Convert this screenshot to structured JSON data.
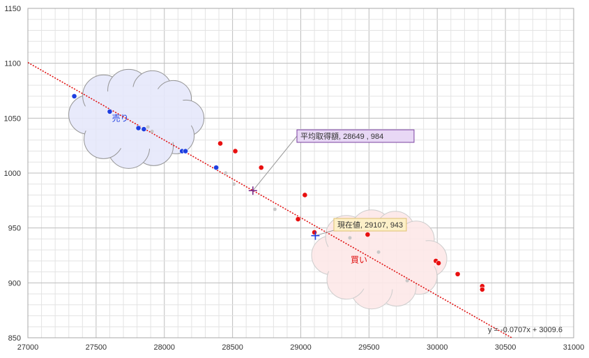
{
  "chart_data": {
    "type": "scatter",
    "xlim": [
      27000,
      31000
    ],
    "ylim": [
      850,
      1150
    ],
    "x_major_step": 500,
    "x_minor_step": 100,
    "y_major_step": 50,
    "y_minor_step": 10,
    "grid": true,
    "x_tick_labels": [
      "27000",
      "27500",
      "28000",
      "28500",
      "29000",
      "29500",
      "30000",
      "30500",
      "31000"
    ],
    "y_tick_labels": [
      "850",
      "900",
      "950",
      "1000",
      "1050",
      "1100",
      "1150"
    ],
    "series": [
      {
        "color": "#1f3fe0",
        "points": [
          {
            "x": 27340,
            "y": 1070
          },
          {
            "x": 27600,
            "y": 1056
          },
          {
            "x": 27810,
            "y": 1041
          },
          {
            "x": 27850,
            "y": 1040
          },
          {
            "x": 28130,
            "y": 1020
          },
          {
            "x": 28155,
            "y": 1020
          },
          {
            "x": 28380,
            "y": 1005
          }
        ]
      },
      {
        "color": "#e81010",
        "points": [
          {
            "x": 28410,
            "y": 1027
          },
          {
            "x": 28520,
            "y": 1020
          },
          {
            "x": 28710,
            "y": 1005
          },
          {
            "x": 29030,
            "y": 980
          },
          {
            "x": 28980,
            "y": 958
          },
          {
            "x": 29100,
            "y": 946
          },
          {
            "x": 29490,
            "y": 944
          },
          {
            "x": 29990,
            "y": 920
          },
          {
            "x": 30010,
            "y": 918
          },
          {
            "x": 30150,
            "y": 908
          },
          {
            "x": 30330,
            "y": 897
          },
          {
            "x": 30330,
            "y": 894
          }
        ]
      },
      {
        "color": "#c8c8c8",
        "points": [
          {
            "x": 27880,
            "y": 1042
          },
          {
            "x": 27910,
            "y": 1038
          },
          {
            "x": 28450,
            "y": 1000
          },
          {
            "x": 28510,
            "y": 990
          },
          {
            "x": 28810,
            "y": 967
          },
          {
            "x": 29360,
            "y": 941
          },
          {
            "x": 29570,
            "y": 928
          },
          {
            "x": 29780,
            "y": 902
          }
        ]
      }
    ],
    "trendline": {
      "slope": -0.0707,
      "intercept": 3009.6,
      "color": "#e01010",
      "label": "y = -0.0707x + 3009.6"
    },
    "markers": [
      {
        "x": 28649,
        "y": 984,
        "color": "#7a2a8a",
        "label": "平均取得額, 28649 , 984",
        "label_bg": "#e8d8f5",
        "label_border": "#7a3fa0"
      },
      {
        "x": 29107,
        "y": 943,
        "color": "#1f3fe0",
        "label": "現在値, 29107, 943",
        "label_bg": "#fdf0c8",
        "label_border": "#e0c070"
      }
    ],
    "clouds": [
      {
        "label": "売り",
        "fill": "#e6e8fb",
        "stroke": "#8a8a8a",
        "text_color": "#1f3fe0",
        "x_center": 27800,
        "y_center": 1050
      },
      {
        "label": "買い",
        "fill": "#fde8e8",
        "stroke": "#c8c8c8",
        "text_color": "#e01010",
        "x_center": 29580,
        "y_center": 922
      }
    ]
  }
}
